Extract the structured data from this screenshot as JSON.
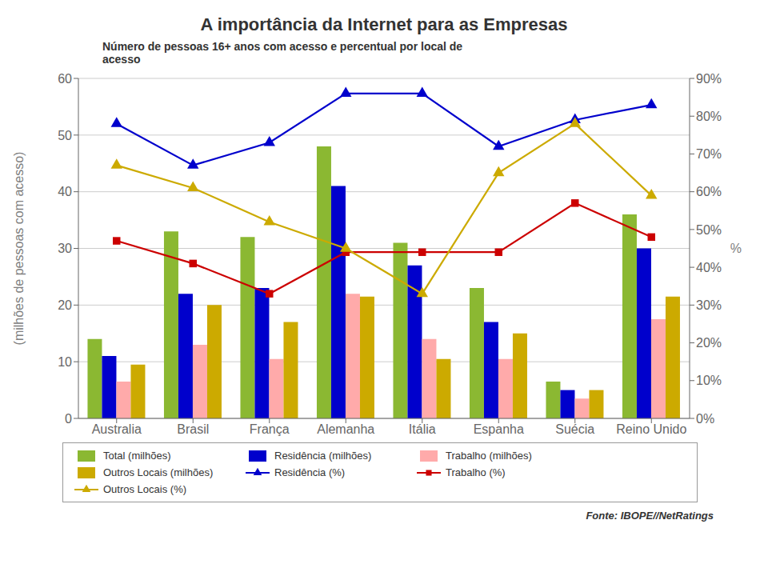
{
  "chart_data": {
    "type": "bar",
    "title": "A importância da Internet para as Empresas",
    "subtitle": "Número de pessoas 16+ anos com acesso e percentual por local de\nacesso",
    "categories": [
      "Australia",
      "Brasil",
      "França",
      "Alemanha",
      "Itália",
      "Espanha",
      "Suécia",
      "Reino Unido"
    ],
    "series": [
      {
        "name": "Total (milhões)",
        "color": "#8BB832",
        "values": [
          14,
          33,
          32,
          48,
          31,
          23,
          6.5,
          36
        ]
      },
      {
        "name": "Residência (milhões)",
        "color": "#0000CC",
        "values": [
          11,
          22,
          23,
          41,
          27,
          17,
          5,
          30
        ]
      },
      {
        "name": "Trabalho (milhões)",
        "color": "#FFAAAA",
        "values": [
          6.5,
          13,
          10.5,
          22,
          14,
          10.5,
          3.5,
          17.5
        ]
      },
      {
        "name": "Outros Locais (milhões)",
        "color": "#CCAA00",
        "values": [
          9.5,
          20,
          17,
          21.5,
          10.5,
          15,
          5,
          21.5
        ]
      },
      {
        "name": "Residência (%)",
        "type": "line",
        "axis": "y2",
        "color": "#0000CC",
        "marker": "triangle",
        "values": [
          78,
          67,
          73,
          86,
          86,
          72,
          79,
          83
        ]
      },
      {
        "name": "Trabalho (%)",
        "type": "line",
        "axis": "y2",
        "color": "#CC0000",
        "marker": "square",
        "values": [
          47,
          41,
          33,
          44,
          44,
          44,
          57,
          48
        ]
      },
      {
        "name": "Outros Locais (%)",
        "type": "line",
        "axis": "y2",
        "color": "#CCAA00",
        "marker": "triangle",
        "values": [
          67,
          61,
          52,
          45,
          33,
          65,
          78,
          59
        ]
      }
    ],
    "ylabel": "(milhões de pessoas com acesso)",
    "y2label": "%",
    "ylim": [
      0,
      60
    ],
    "yticks": [
      0,
      10,
      20,
      30,
      40,
      50,
      60
    ],
    "y2lim": [
      0,
      90
    ],
    "y2ticks": [
      {
        "value": 0,
        "label": "0%"
      },
      {
        "value": 10,
        "label": "10%"
      },
      {
        "value": 20,
        "label": "20%"
      },
      {
        "value": 30,
        "label": "30%"
      },
      {
        "value": 40,
        "label": "40%"
      },
      {
        "value": 50,
        "label": "50%"
      },
      {
        "value": 60,
        "label": "60%"
      },
      {
        "value": 70,
        "label": "70%"
      },
      {
        "value": 80,
        "label": "80%"
      },
      {
        "value": 90,
        "label": "90%"
      }
    ],
    "grid": true,
    "legend": "bottom",
    "annotations": [
      "Fonte: IBOPE//NetRatings"
    ]
  }
}
